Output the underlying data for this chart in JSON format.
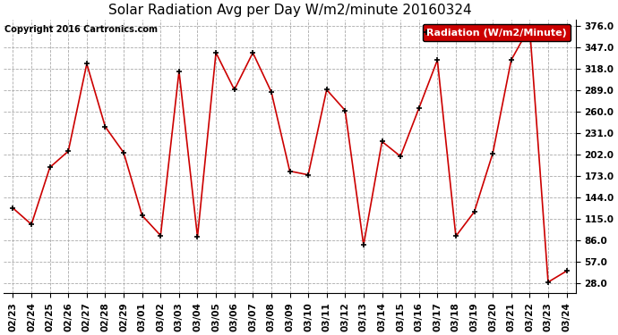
{
  "title": "Solar Radiation Avg per Day W/m2/minute 20160324",
  "copyright": "Copyright 2016 Cartronics.com",
  "legend_label": "Radiation (W/m2/Minute)",
  "dates": [
    "02/23",
    "02/24",
    "02/25",
    "02/26",
    "02/27",
    "02/28",
    "02/29",
    "03/01",
    "03/02",
    "03/03",
    "03/04",
    "03/05",
    "03/06",
    "03/07",
    "03/08",
    "03/09",
    "03/10",
    "03/11",
    "03/12",
    "03/13",
    "03/14",
    "03/15",
    "03/16",
    "03/17",
    "03/18",
    "03/19",
    "03/20",
    "03/21",
    "03/22",
    "03/23",
    "03/24"
  ],
  "values": [
    130,
    108,
    185,
    207,
    325,
    240,
    205,
    120,
    93,
    315,
    91,
    340,
    290,
    340,
    287,
    180,
    175,
    290,
    262,
    80,
    220,
    200,
    265,
    330,
    92,
    125,
    204,
    330,
    375,
    30,
    45
  ],
  "yticks": [
    28.0,
    57.0,
    86.0,
    115.0,
    144.0,
    173.0,
    202.0,
    231.0,
    260.0,
    289.0,
    318.0,
    347.0,
    376.0
  ],
  "line_color": "#cc0000",
  "marker_color": "#000000",
  "bg_color": "#ffffff",
  "grid_color": "#aaaaaa",
  "legend_bg": "#cc0000",
  "legend_text_color": "#ffffff",
  "title_fontsize": 11,
  "copyright_fontsize": 7,
  "tick_fontsize": 7.5,
  "legend_fontsize": 8,
  "ylim_min": 15,
  "ylim_max": 385
}
